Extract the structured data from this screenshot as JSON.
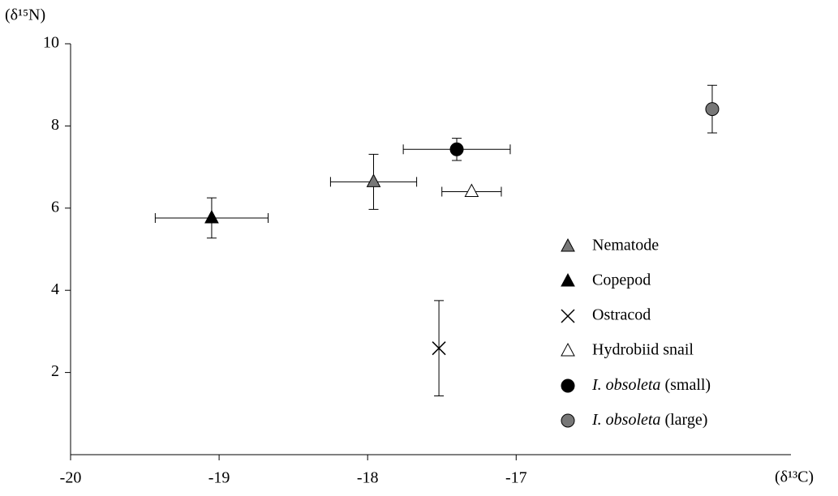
{
  "chart_data": {
    "type": "scatter",
    "y_label": "(δ¹⁵N)",
    "x_label": "(δ¹³C)",
    "xlim": [
      -20,
      -15.15
    ],
    "ylim": [
      0,
      10
    ],
    "xticks": [
      -20,
      -19,
      -18,
      -17
    ],
    "yticks": [
      2,
      4,
      6,
      8,
      10
    ],
    "legend": "lower right",
    "series": [
      {
        "name": "Nematode",
        "marker": "triangle",
        "color": "#777777",
        "x": [
          -17.96
        ],
        "values": [
          6.64
        ],
        "xerr": [
          0.29
        ],
        "yerr": [
          0.67
        ]
      },
      {
        "name": "Copepod",
        "marker": "triangle",
        "color": "#000000",
        "x": [
          -19.05
        ],
        "values": [
          5.76
        ],
        "xerr": [
          0.38
        ],
        "yerr": [
          0.49
        ]
      },
      {
        "name": "Ostracod",
        "marker": "x",
        "color": "#000000",
        "x": [
          -17.52
        ],
        "values": [
          2.59
        ],
        "xerr": [
          null
        ],
        "yerr": [
          1.16
        ]
      },
      {
        "name": "Hydrobiid snail",
        "marker": "triangle",
        "color": "#ffffff",
        "x": [
          -17.3
        ],
        "values": [
          6.4
        ],
        "xerr": [
          0.2
        ],
        "yerr": [
          null
        ]
      },
      {
        "name": "I. obsoleta (small)",
        "italic": "I. obsoleta",
        "marker": "circle",
        "color": "#000000",
        "x": [
          -17.4
        ],
        "values": [
          7.43
        ],
        "xerr": [
          0.36
        ],
        "yerr": [
          0.27
        ]
      },
      {
        "name": "I. obsoleta (large)",
        "italic": "I. obsoleta",
        "marker": "circle",
        "color": "#777777",
        "x": [
          -15.68
        ],
        "values": [
          8.41
        ],
        "xerr": [
          null
        ],
        "yerr": [
          0.58
        ]
      }
    ]
  }
}
